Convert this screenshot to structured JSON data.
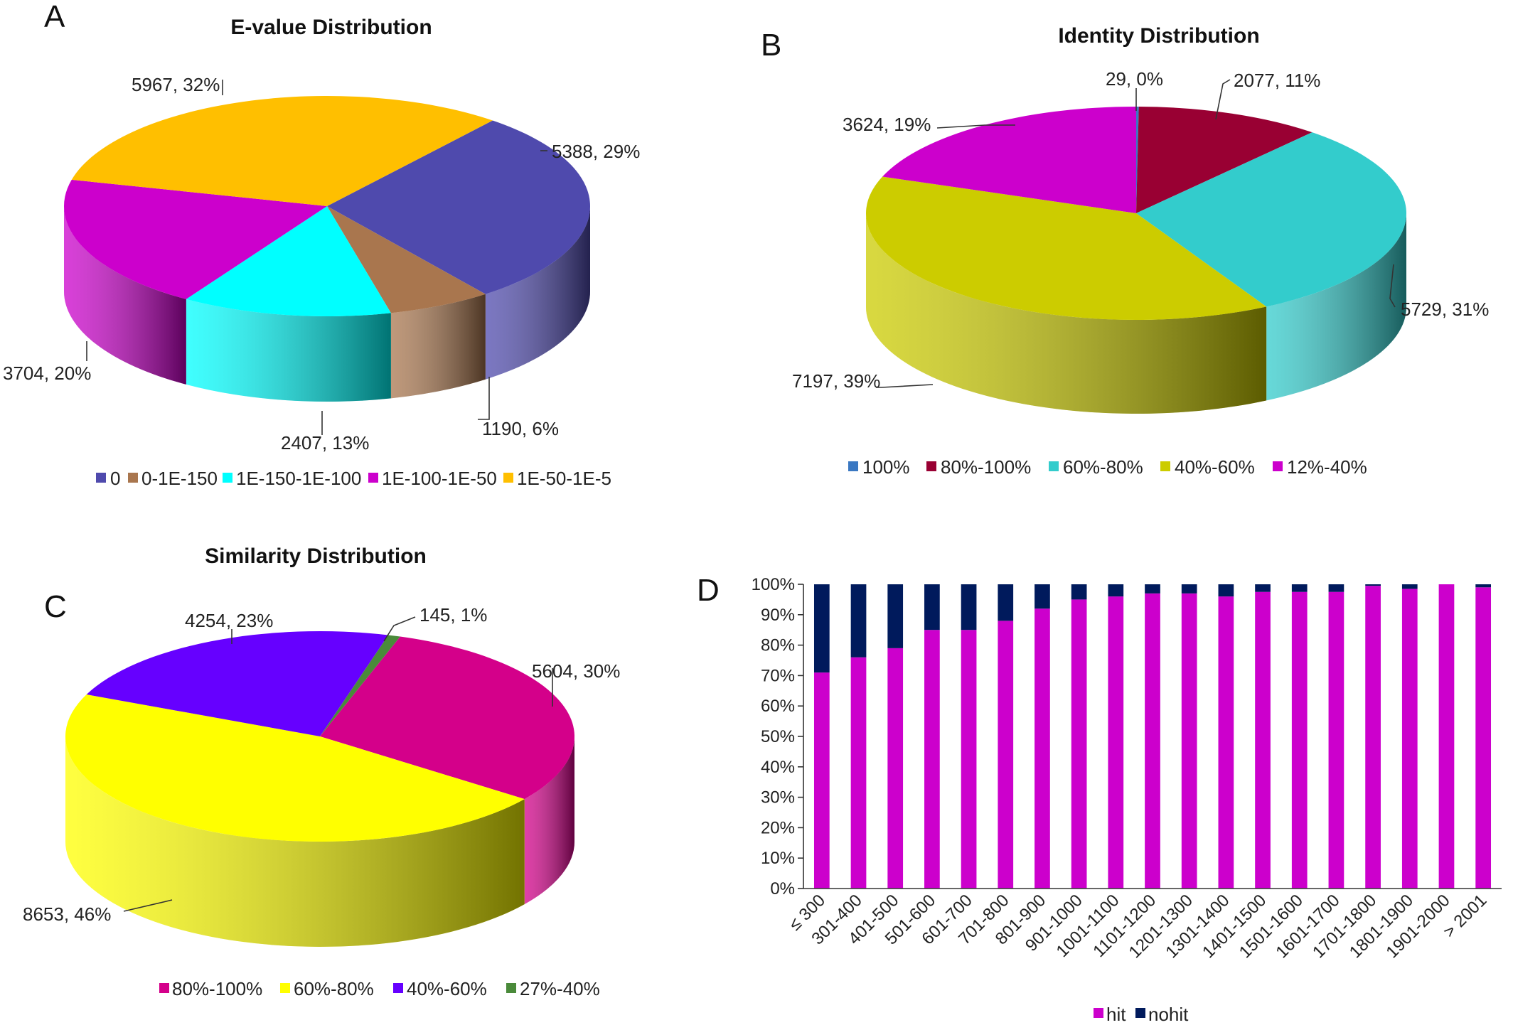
{
  "panels": [
    {
      "letter": "A"
    },
    {
      "letter": "B"
    },
    {
      "letter": "C"
    },
    {
      "letter": "D"
    }
  ],
  "chart_data": [
    {
      "type": "pie",
      "title": "E-value Distribution",
      "slices": [
        {
          "name": "0",
          "value": 5388,
          "label": "5388, 29%",
          "color": "#4f4aad"
        },
        {
          "name": "0-1E-150",
          "value": 1190,
          "label": "1190, 6%",
          "color": "#a9764e"
        },
        {
          "name": "1E-150-1E-100",
          "value": 2407,
          "label": "2407, 13%",
          "color": "#00ffff"
        },
        {
          "name": "1E-100-1E-50",
          "value": 3704,
          "label": "3704, 20%",
          "color": "#cc00cc"
        },
        {
          "name": "1E-50-1E-5",
          "value": 5967,
          "label": "5967, 32%",
          "color": "#ffbf00"
        }
      ],
      "legend": "bottom"
    },
    {
      "type": "pie",
      "title": "Identity Distribution",
      "slices": [
        {
          "name": "100%",
          "value": 29,
          "label": "29, 0%",
          "color": "#3a78c2"
        },
        {
          "name": "80%-100%",
          "value": 2077,
          "label": "2077, 11%",
          "color": "#990033"
        },
        {
          "name": "60%-80%",
          "value": 5729,
          "label": "5729, 31%",
          "color": "#33cccc"
        },
        {
          "name": "40%-60%",
          "value": 7197,
          "label": "7197, 39%",
          "color": "#cccc00"
        },
        {
          "name": "12%-40%",
          "value": 3624,
          "label": "3624, 19%",
          "color": "#cc00cc"
        }
      ],
      "legend": "bottom"
    },
    {
      "type": "pie",
      "title": "Similarity Distribution",
      "slices": [
        {
          "name": "80%-100%",
          "value": 5604,
          "label": "5604, 30%",
          "color": "#d4008a"
        },
        {
          "name": "60%-80%",
          "value": 8653,
          "label": "8653, 46%",
          "color": "#ffff00"
        },
        {
          "name": "40%-60%",
          "value": 4254,
          "label": "4254, 23%",
          "color": "#6600ff"
        },
        {
          "name": "27%-40%",
          "value": 145,
          "label": "145, 1%",
          "color": "#4a8a3a"
        }
      ],
      "legend": "bottom"
    },
    {
      "type": "bar",
      "stacked": true,
      "percent": true,
      "title": "",
      "categories": [
        "≤ 300",
        "301-400",
        "401-500",
        "501-600",
        "601-700",
        "701-800",
        "801-900",
        "901-1000",
        "1001-1100",
        "1101-1200",
        "1201-1300",
        "1301-1400",
        "1401-1500",
        "1501-1600",
        "1601-1700",
        "1701-1800",
        "1801-1900",
        "1901-2000",
        "> 2001"
      ],
      "series": [
        {
          "name": "hit",
          "color": "#cc00cc",
          "values": [
            71,
            76,
            79,
            85,
            85,
            88,
            92,
            95,
            96,
            97,
            97,
            96,
            97.5,
            97.5,
            97.5,
            99.5,
            98.5,
            100,
            99
          ]
        },
        {
          "name": "nohit",
          "color": "#001a5c",
          "values": [
            29,
            24,
            21,
            15,
            15,
            12,
            8,
            5,
            4,
            3,
            3,
            4,
            2.5,
            2.5,
            2.5,
            0.5,
            1.5,
            0,
            1
          ]
        }
      ],
      "yticks": [
        "0%",
        "10%",
        "20%",
        "30%",
        "40%",
        "50%",
        "60%",
        "70%",
        "80%",
        "90%",
        "100%"
      ],
      "ylim": [
        0,
        100
      ],
      "legend": "bottom"
    }
  ]
}
